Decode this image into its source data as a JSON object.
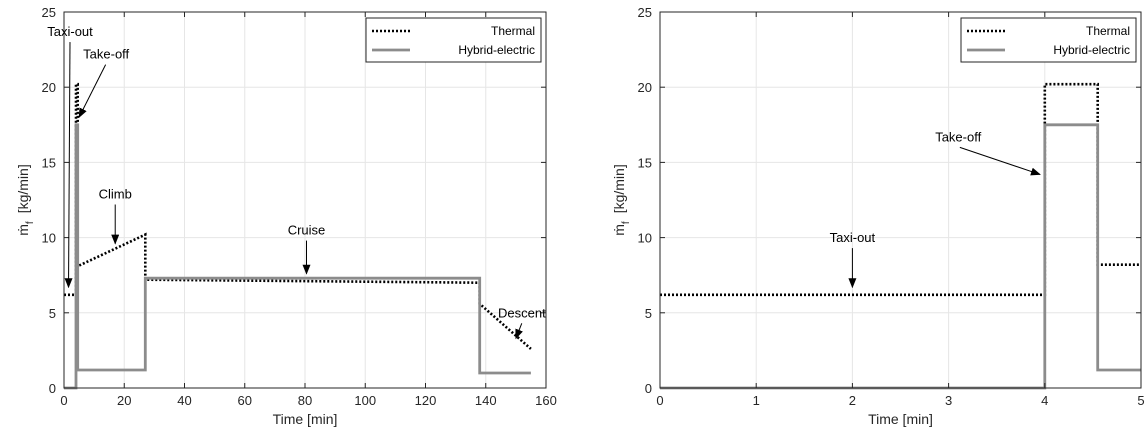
{
  "chart_data": [
    {
      "type": "line",
      "xlabel": "Time [min]",
      "ylabel_main": "ṁ",
      "ylabel_sub": "f",
      "ylabel_unit": "[kg/min]",
      "xlim": [
        0,
        160
      ],
      "ylim": [
        0,
        25
      ],
      "xticks": [
        0,
        20,
        40,
        60,
        80,
        100,
        120,
        140,
        160
      ],
      "yticks": [
        0,
        5,
        10,
        15,
        20,
        25
      ],
      "grid": true,
      "legend_position": "top-right",
      "series": [
        {
          "name": "Thermal",
          "style": "dotted",
          "color": "#000000",
          "x": [
            0,
            4,
            4,
            4.55,
            4.55,
            27,
            27,
            138,
            138,
            155
          ],
          "y": [
            6.2,
            6.2,
            20.2,
            20.2,
            8.1,
            10.2,
            7.2,
            7.0,
            5.6,
            2.6
          ]
        },
        {
          "name": "Hybrid-electric",
          "style": "solid",
          "color": "#8c8c8c",
          "x": [
            0,
            4,
            4,
            4.55,
            4.55,
            27,
            27,
            138,
            138,
            155
          ],
          "y": [
            0,
            0,
            17.5,
            17.5,
            1.2,
            1.2,
            7.3,
            7.3,
            1.0,
            1.0
          ]
        }
      ],
      "annotations": [
        {
          "text": "Taxi-out",
          "tx": 2,
          "ty": 23.4,
          "ax": 1.5,
          "ay": 6.7
        },
        {
          "text": "Take-off",
          "tx": 14,
          "ty": 21.9,
          "ax": 5,
          "ay": 18.0
        },
        {
          "text": "Climb",
          "tx": 17,
          "ty": 12.6,
          "ax": 17,
          "ay": 9.6
        },
        {
          "text": "Cruise",
          "tx": 80.5,
          "ty": 10.2,
          "ax": 80.5,
          "ay": 7.6
        },
        {
          "text": "Descent",
          "tx": 152,
          "ty": 4.7,
          "ax": 150,
          "ay": 3.3
        }
      ]
    },
    {
      "type": "line",
      "xlabel": "Time [min]",
      "ylabel_main": "ṁ",
      "ylabel_sub": "f",
      "ylabel_unit": "[kg/min]",
      "xlim": [
        0,
        5
      ],
      "ylim": [
        0,
        25
      ],
      "xticks": [
        0,
        1,
        2,
        3,
        4,
        5
      ],
      "yticks": [
        0,
        5,
        10,
        15,
        20,
        25
      ],
      "grid": true,
      "legend_position": "top-right",
      "series": [
        {
          "name": "Thermal",
          "style": "dotted",
          "color": "#000000",
          "x": [
            0,
            4,
            4,
            4.55,
            4.55,
            5
          ],
          "y": [
            6.2,
            6.2,
            20.2,
            20.2,
            8.2,
            8.2
          ]
        },
        {
          "name": "Hybrid-electric",
          "style": "solid",
          "color": "#8c8c8c",
          "x": [
            0,
            4,
            4,
            4.55,
            4.55,
            5
          ],
          "y": [
            0,
            0,
            17.5,
            17.5,
            1.2,
            1.2
          ]
        }
      ],
      "annotations": [
        {
          "text": "Taxi-out",
          "tx": 2,
          "ty": 9.7,
          "ax": 2,
          "ay": 6.7
        },
        {
          "text": "Take-off",
          "tx": 3.1,
          "ty": 16.4,
          "ax": 3.95,
          "ay": 14.2
        }
      ]
    }
  ]
}
